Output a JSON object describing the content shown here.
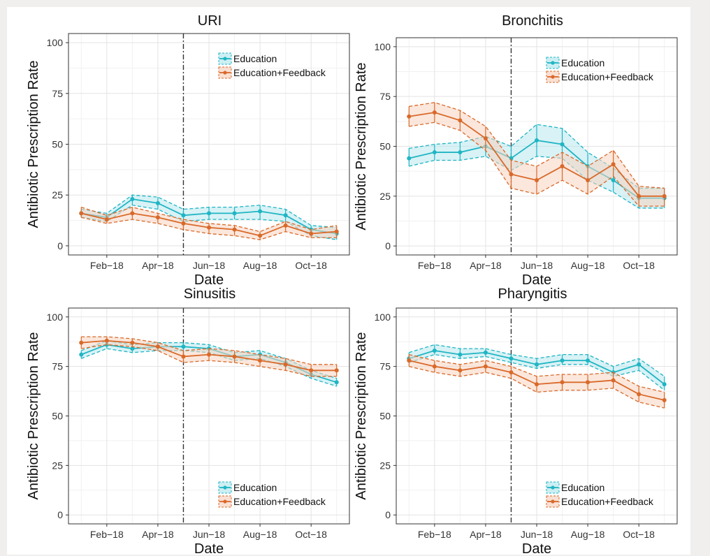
{
  "colors": {
    "education": "#1fb5c3",
    "education_band": "#b8e8ee",
    "feedback": "#d9692a",
    "feedback_band": "#f7d3c0"
  },
  "chart_data": [
    {
      "type": "line",
      "title": "URI",
      "xlabel": "Date",
      "ylabel": "Antibiotic Prescription Rate",
      "ylim": [
        0,
        100
      ],
      "y_ticks": [
        0,
        25,
        50,
        75,
        100
      ],
      "x_tick_labels": [
        "Feb−18",
        "Apr−18",
        "Jun−18",
        "Aug−18",
        "Oct−18"
      ],
      "x": [
        "2018-01",
        "2018-02",
        "2018-03",
        "2018-04",
        "2018-05",
        "2018-06",
        "2018-07",
        "2018-08",
        "2018-09",
        "2018-10",
        "2018-11"
      ],
      "intervention": "2018-05-01",
      "legend_position": "top-right",
      "grid": true,
      "series": [
        {
          "name": "Education",
          "values": [
            16,
            14,
            23,
            21,
            15,
            16,
            16,
            17,
            15,
            8,
            6
          ],
          "lower": [
            14,
            12,
            20,
            18,
            12,
            13,
            13,
            13,
            12,
            5,
            3
          ],
          "upper": [
            18,
            16,
            25,
            24,
            18,
            19,
            19,
            20,
            18,
            10,
            9
          ]
        },
        {
          "name": "Education+Feedback",
          "values": [
            16,
            13,
            16,
            14,
            11,
            9,
            8,
            5,
            10,
            6,
            7
          ],
          "lower": [
            14,
            11,
            13,
            11,
            8,
            6,
            5,
            3,
            7,
            4,
            4
          ],
          "upper": [
            19,
            15,
            19,
            16,
            13,
            11,
            10,
            7,
            12,
            8,
            10
          ]
        }
      ]
    },
    {
      "type": "line",
      "title": "Bronchitis",
      "xlabel": "Date",
      "ylabel": "Antibiotic Prescription Rate",
      "ylim": [
        0,
        100
      ],
      "y_ticks": [
        0,
        25,
        50,
        75,
        100
      ],
      "x_tick_labels": [
        "Feb−18",
        "Apr−18",
        "Jun−18",
        "Aug−18",
        "Oct−18"
      ],
      "x": [
        "2018-01",
        "2018-02",
        "2018-03",
        "2018-04",
        "2018-05",
        "2018-06",
        "2018-07",
        "2018-08",
        "2018-09",
        "2018-10",
        "2018-11"
      ],
      "intervention": "2018-05-01",
      "legend_position": "top-right",
      "grid": true,
      "series": [
        {
          "name": "Education",
          "values": [
            44,
            47,
            47,
            50,
            44,
            53,
            51,
            40,
            33,
            24,
            24
          ],
          "lower": [
            40,
            43,
            43,
            45,
            38,
            45,
            44,
            33,
            27,
            19,
            19
          ],
          "upper": [
            49,
            51,
            52,
            55,
            50,
            61,
            59,
            47,
            39,
            29,
            29
          ]
        },
        {
          "name": "Education+Feedback",
          "values": [
            65,
            67,
            63,
            54,
            36,
            33,
            40,
            33,
            41,
            25,
            25
          ],
          "lower": [
            60,
            62,
            58,
            48,
            29,
            26,
            33,
            26,
            35,
            20,
            20
          ],
          "upper": [
            70,
            72,
            68,
            60,
            43,
            40,
            47,
            40,
            48,
            30,
            29
          ]
        }
      ]
    },
    {
      "type": "line",
      "title": "Sinusitis",
      "xlabel": "Date",
      "ylabel": "Antibiotic Prescription Rate",
      "ylim": [
        0,
        100
      ],
      "y_ticks": [
        0,
        25,
        50,
        75,
        100
      ],
      "x_tick_labels": [
        "Feb−18",
        "Apr−18",
        "Jun−18",
        "Aug−18",
        "Oct−18"
      ],
      "x": [
        "2018-01",
        "2018-02",
        "2018-03",
        "2018-04",
        "2018-05",
        "2018-06",
        "2018-07",
        "2018-08",
        "2018-09",
        "2018-10",
        "2018-11"
      ],
      "intervention": "2018-05-01",
      "legend_position": "bottom-right",
      "grid": true,
      "series": [
        {
          "name": "Education",
          "values": [
            81,
            86,
            84,
            85,
            85,
            84,
            80,
            81,
            77,
            71,
            67
          ],
          "lower": [
            79,
            84,
            82,
            83,
            83,
            82,
            78,
            79,
            75,
            69,
            65
          ],
          "upper": [
            83,
            88,
            86,
            87,
            87,
            86,
            82,
            83,
            79,
            73,
            69
          ]
        },
        {
          "name": "Education+Feedback",
          "values": [
            87,
            88,
            87,
            85,
            80,
            81,
            80,
            78,
            76,
            73,
            73
          ],
          "lower": [
            84,
            86,
            85,
            83,
            77,
            78,
            77,
            75,
            73,
            70,
            70
          ],
          "upper": [
            90,
            90,
            89,
            87,
            83,
            84,
            83,
            81,
            79,
            76,
            76
          ]
        }
      ]
    },
    {
      "type": "line",
      "title": "Pharyngitis",
      "xlabel": "Date",
      "ylabel": "Antibiotic Prescription Rate",
      "ylim": [
        0,
        100
      ],
      "y_ticks": [
        0,
        25,
        50,
        75,
        100
      ],
      "x_tick_labels": [
        "Feb−18",
        "Apr−18",
        "Jun−18",
        "Aug−18",
        "Oct−18"
      ],
      "x": [
        "2018-01",
        "2018-02",
        "2018-03",
        "2018-04",
        "2018-05",
        "2018-06",
        "2018-07",
        "2018-08",
        "2018-09",
        "2018-10",
        "2018-11"
      ],
      "intervention": "2018-05-01",
      "legend_position": "bottom-right",
      "grid": true,
      "series": [
        {
          "name": "Education",
          "values": [
            79,
            83,
            81,
            82,
            79,
            76,
            78,
            78,
            72,
            76,
            66
          ],
          "lower": [
            77,
            81,
            79,
            80,
            77,
            74,
            76,
            76,
            70,
            73,
            63
          ],
          "upper": [
            82,
            86,
            84,
            84,
            81,
            79,
            81,
            81,
            75,
            79,
            70
          ]
        },
        {
          "name": "Education+Feedback",
          "values": [
            78,
            75,
            73,
            75,
            72,
            66,
            67,
            67,
            68,
            61,
            58
          ],
          "lower": [
            75,
            72,
            70,
            72,
            69,
            62,
            63,
            63,
            64,
            57,
            54
          ],
          "upper": [
            81,
            78,
            76,
            78,
            75,
            70,
            71,
            71,
            72,
            65,
            62
          ]
        }
      ]
    }
  ]
}
